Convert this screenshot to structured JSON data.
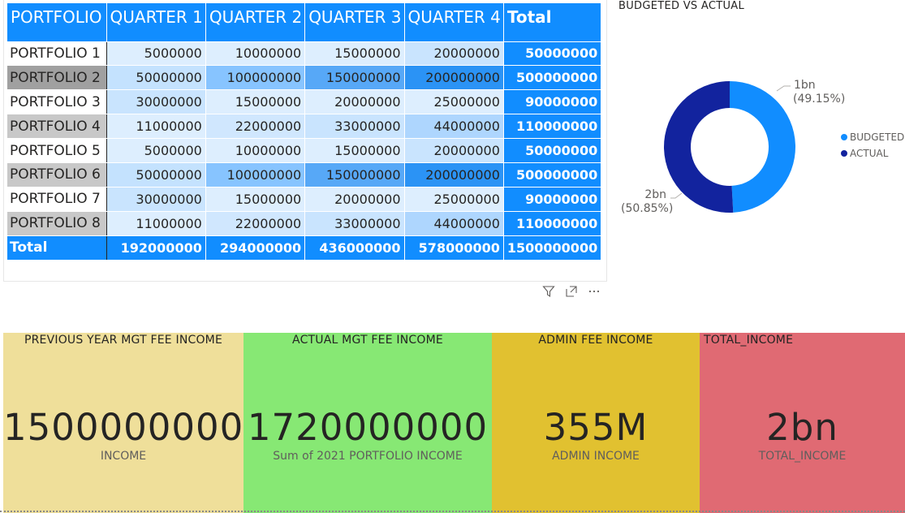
{
  "matrix": {
    "headers": [
      "PORTFOLIO",
      "QUARTER 1",
      "QUARTER 2",
      "QUARTER 3",
      "QUARTER 4",
      "Total"
    ],
    "rows": [
      {
        "label": "PORTFOLIO 1",
        "q1": "5000000",
        "q2": "10000000",
        "q3": "15000000",
        "q4": "20000000",
        "total": "50000000"
      },
      {
        "label": "PORTFOLIO 2",
        "q1": "50000000",
        "q2": "100000000",
        "q3": "150000000",
        "q4": "200000000",
        "total": "500000000"
      },
      {
        "label": "PORTFOLIO 3",
        "q1": "30000000",
        "q2": "15000000",
        "q3": "20000000",
        "q4": "25000000",
        "total": "90000000"
      },
      {
        "label": "PORTFOLIO 4",
        "q1": "11000000",
        "q2": "22000000",
        "q3": "33000000",
        "q4": "44000000",
        "total": "110000000"
      },
      {
        "label": "PORTFOLIO 5",
        "q1": "5000000",
        "q2": "10000000",
        "q3": "15000000",
        "q4": "20000000",
        "total": "50000000"
      },
      {
        "label": "PORTFOLIO 6",
        "q1": "50000000",
        "q2": "100000000",
        "q3": "150000000",
        "q4": "200000000",
        "total": "500000000"
      },
      {
        "label": "PORTFOLIO 7",
        "q1": "30000000",
        "q2": "15000000",
        "q3": "20000000",
        "q4": "25000000",
        "total": "90000000"
      },
      {
        "label": "PORTFOLIO 8",
        "q1": "11000000",
        "q2": "22000000",
        "q3": "33000000",
        "q4": "44000000",
        "total": "110000000"
      }
    ],
    "total_row": {
      "label": "Total",
      "q1": "192000000",
      "q2": "294000000",
      "q3": "436000000",
      "q4": "578000000",
      "total": "1500000000"
    },
    "icons": [
      "filter-icon",
      "focus-mode-icon",
      "more-options-icon"
    ]
  },
  "chart_data": {
    "type": "pie",
    "title": "BUDGETED VS ACTUAL",
    "categories": [
      "BUDGETED",
      "ACTUAL"
    ],
    "values": [
      49.15,
      50.85
    ],
    "value_labels": [
      "1bn",
      "2bn"
    ],
    "percent_labels": [
      "(49.15%)",
      "(50.85%)"
    ],
    "colors": {
      "BUDGETED": "#118dff",
      "ACTUAL": "#12239e"
    },
    "legend_position": "right"
  },
  "cards": [
    {
      "title": "PREVIOUS YEAR MGT FEE INCOME",
      "value": "1500000000",
      "subtitle": "INCOME",
      "color": "#efdf9a"
    },
    {
      "title": "ACTUAL MGT FEE INCOME",
      "value": "1720000000",
      "subtitle": "Sum of 2021 PORTFOLIO INCOME",
      "color": "#87e874"
    },
    {
      "title": "ADMIN FEE INCOME",
      "value": "355M",
      "subtitle": "ADMIN INCOME",
      "color": "#e1c130"
    },
    {
      "title": "TOTAL_INCOME",
      "value": "2bn",
      "subtitle": "TOTAL_INCOME",
      "color": "#e06a73"
    }
  ]
}
